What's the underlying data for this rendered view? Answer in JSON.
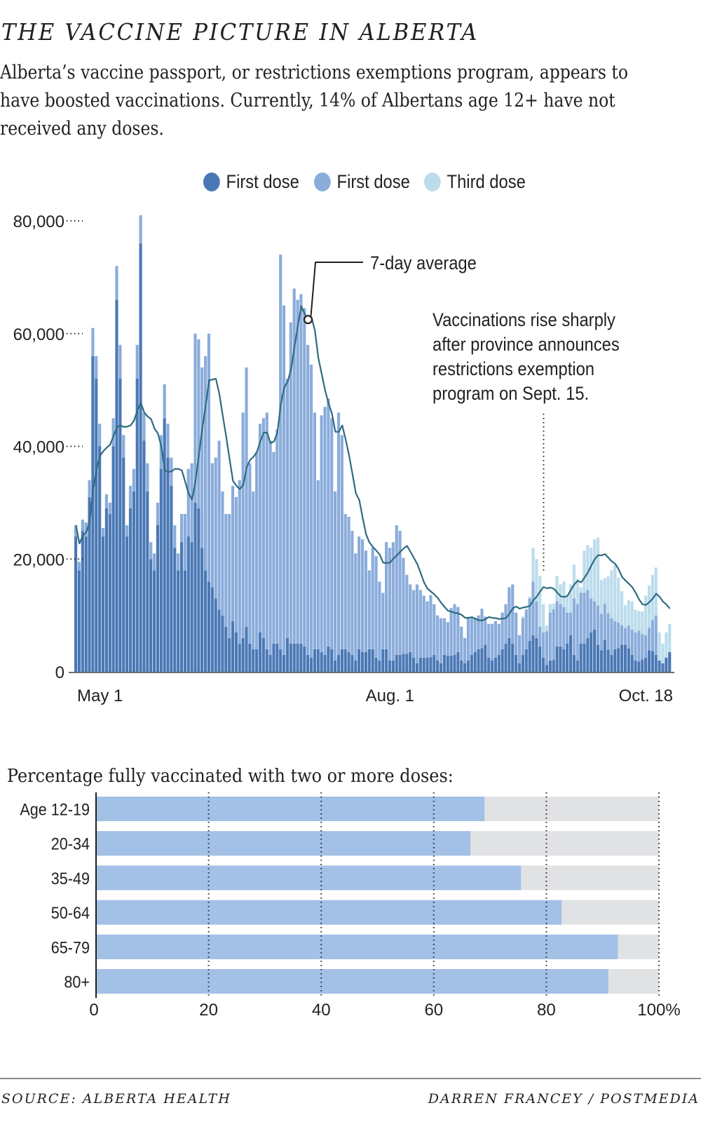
{
  "header": {
    "title": "THE VACCINE PICTURE IN ALBERTA",
    "subtitle": "Alberta’s vaccine passport, or restrictions exemptions program, appears to have boosted vaccinations. Currently, 14% of Albertans age 12+ have not received any doses."
  },
  "legend": [
    {
      "label": "First dose",
      "color": "#4a78b5"
    },
    {
      "label": "First dose",
      "color": "#8aacdb"
    },
    {
      "label": "Third dose",
      "color": "#bcdcec"
    }
  ],
  "footer": {
    "source": "SOURCE: ALBERTA HEALTH",
    "byline": "DARREN FRANCEY / POSTMEDIA"
  },
  "chart_data": [
    {
      "type": "bar",
      "stacked": true,
      "title": "Daily vaccinations",
      "xlabel": "",
      "ylabel": "",
      "ylim": [
        0,
        80000
      ],
      "yticks": [
        0,
        20000,
        40000,
        60000,
        80000
      ],
      "ytick_labels": [
        "0",
        "20,000",
        "40,000",
        "60,000",
        "80,000"
      ],
      "x_start": "May 1",
      "x_end": "Oct. 18",
      "xtick_labels": [
        {
          "label": "May 1",
          "day_index": 0
        },
        {
          "label": "Aug. 1",
          "day_index": 92
        },
        {
          "label": "Oct. 18",
          "day_index": 170
        }
      ],
      "grid": false,
      "legend_position": "top",
      "series_colors": [
        "#4a78b5",
        "#8aacdb",
        "#bcdcec"
      ],
      "line_color": "#2f6b80",
      "series": [
        {
          "name": "First dose",
          "values": [
            24000,
            18000,
            25000,
            24000,
            31000,
            56000,
            52000,
            40000,
            24000,
            29000,
            28000,
            40000,
            66000,
            52000,
            38000,
            24000,
            29000,
            32000,
            52000,
            76000,
            41000,
            32000,
            20000,
            18000,
            26000,
            36000,
            45000,
            38000,
            33000,
            22000,
            18000,
            23000,
            18000,
            24000,
            23000,
            30000,
            29000,
            22000,
            18000,
            16000,
            15000,
            13000,
            11000,
            10000,
            8000,
            6000,
            9000,
            7000,
            5000,
            6000,
            8000,
            5000,
            4000,
            4000,
            7000,
            6000,
            4000,
            3000,
            5000,
            5000,
            4000,
            3000,
            6000,
            5000,
            5000,
            5000,
            5000,
            4500,
            3000,
            2500,
            4000,
            4000,
            3500,
            3000,
            4500,
            4000,
            2000,
            3000,
            4000,
            4000,
            3500,
            3000,
            2000,
            4000,
            3500,
            3500,
            4000,
            4000,
            2500,
            2000,
            4000,
            4000,
            2000,
            2000,
            3000,
            3000,
            3200,
            3200,
            3500,
            2500,
            1500,
            2500,
            2500,
            2500,
            2600,
            3000,
            2000,
            1500,
            3000,
            2800,
            2800,
            3000,
            3500,
            2000,
            1500,
            2000,
            3000,
            3500,
            4000,
            4200,
            4800,
            2500,
            2000,
            2500,
            3000,
            4000,
            5000,
            6000,
            5000,
            3000,
            1500,
            3000,
            4000,
            5500,
            6500,
            6000,
            4500,
            2500,
            1200,
            2000,
            2100,
            4500,
            4500,
            4000,
            5000,
            6500,
            3000,
            2000,
            5000,
            5000,
            6000,
            7000,
            7500,
            4800,
            3800,
            5600,
            3900,
            3000,
            4000,
            4200,
            4800,
            4800,
            4200,
            3000,
            2000,
            1800,
            2200,
            2500,
            3800,
            3700,
            3000,
            2000,
            1500,
            2500,
            3500
          ]
        },
        {
          "name": "First dose (second segment)",
          "values": [
            2000,
            1500,
            2000,
            2500,
            3000,
            5000,
            4000,
            4000,
            1500,
            2500,
            2000,
            5000,
            6000,
            6000,
            4000,
            2000,
            4000,
            4000,
            6000,
            5000,
            5000,
            5000,
            3000,
            3000,
            4000,
            6000,
            6000,
            6000,
            5000,
            4000,
            3000,
            5000,
            10000,
            12000,
            14000,
            30000,
            30000,
            32000,
            38000,
            44000,
            22000,
            25000,
            30000,
            22000,
            20000,
            22000,
            24000,
            24000,
            29000,
            40000,
            46000,
            32000,
            28000,
            35000,
            37000,
            39000,
            42000,
            38000,
            34000,
            38000,
            70000,
            62000,
            46000,
            57000,
            63000,
            61000,
            62000,
            60000,
            55000,
            52000,
            42000,
            30000,
            42000,
            44000,
            44000,
            41000,
            30000,
            43000,
            38000,
            24000,
            24000,
            22000,
            19000,
            20000,
            20000,
            18000,
            14000,
            18000,
            18000,
            14000,
            10000,
            19000,
            20000,
            21000,
            23000,
            22000,
            17000,
            14000,
            12000,
            12000,
            14000,
            12000,
            11000,
            10000,
            11000,
            9000,
            8000,
            8000,
            6500,
            6000,
            8500,
            9000,
            8000,
            6000,
            4500,
            7500,
            6500,
            6000,
            6000,
            7000,
            5000,
            6000,
            6500,
            6500,
            5500,
            6500,
            7000,
            9000,
            10500,
            7500,
            5000,
            6500,
            7000,
            7500,
            9500,
            6500,
            3500,
            4500,
            6000,
            8500,
            9000,
            8000,
            7500,
            7500,
            5500,
            4000,
            10000,
            10000,
            9000,
            9000,
            8500,
            6000,
            5000,
            7000,
            6500,
            6500,
            6500,
            6500,
            5000,
            4500,
            3500,
            3000,
            4000,
            4500,
            5000,
            5500,
            4500,
            4000,
            4000,
            5500,
            7000
          ]
        },
        {
          "name": "Third dose",
          "values": [
            0,
            0,
            0,
            0,
            0,
            0,
            0,
            0,
            0,
            0,
            0,
            0,
            0,
            0,
            0,
            0,
            0,
            0,
            0,
            0,
            0,
            0,
            0,
            0,
            0,
            0,
            0,
            0,
            0,
            0,
            0,
            0,
            0,
            0,
            0,
            0,
            0,
            0,
            0,
            0,
            0,
            0,
            0,
            0,
            0,
            0,
            0,
            0,
            0,
            0,
            0,
            0,
            0,
            0,
            0,
            0,
            0,
            0,
            0,
            0,
            0,
            0,
            0,
            0,
            0,
            0,
            0,
            0,
            0,
            0,
            0,
            0,
            0,
            0,
            0,
            0,
            0,
            0,
            0,
            0,
            0,
            0,
            0,
            0,
            0,
            0,
            0,
            0,
            0,
            0,
            0,
            0,
            0,
            0,
            0,
            0,
            0,
            0,
            0,
            0,
            0,
            0,
            0,
            0,
            0,
            0,
            0,
            0,
            0,
            0,
            0,
            0,
            0,
            0,
            0,
            0,
            0,
            0,
            0,
            0,
            0,
            0,
            0,
            0,
            0,
            0,
            0,
            0,
            0,
            0,
            0,
            300,
            200,
            300,
            6000,
            7500,
            9000,
            5000,
            1000,
            1500,
            1000,
            4500,
            3500,
            4500,
            3000,
            5000,
            6000,
            4500,
            1000,
            7500,
            8000,
            9000,
            11000,
            12000,
            6000,
            4500,
            6500,
            8500,
            10000,
            8000,
            6000,
            4000,
            4500,
            5000,
            4000,
            3500,
            4000,
            7000,
            7500,
            8000,
            8500,
            5000,
            3500,
            4500,
            5000,
            5000,
            4500,
            3000,
            2500,
            3500,
            7000
          ]
        }
      ],
      "annotations": [
        {
          "text": "7-day average",
          "target": "line-peak"
        },
        {
          "text": "Vaccinations rise sharply after province announces restrictions exemption program on Sept. 15.",
          "target_day_index": 137
        }
      ]
    },
    {
      "type": "bar",
      "orientation": "horizontal",
      "title": "Percentage fully vaccinated with two or more doses:",
      "categories": [
        "Age 12-19",
        "20-34",
        "35-49",
        "50-64",
        "65-79",
        "80+"
      ],
      "values": [
        69,
        66.5,
        75.5,
        82.7,
        92.7,
        91
      ],
      "xlim": [
        0,
        100
      ],
      "xticks": [
        0,
        20,
        40,
        60,
        80,
        100
      ],
      "xtick_labels": [
        "0",
        "20",
        "40",
        "60",
        "80",
        "100%"
      ],
      "bar_color": "#a3c0e6",
      "remainder_color": "#e1e2e4",
      "grid": "dotted vertical"
    }
  ]
}
